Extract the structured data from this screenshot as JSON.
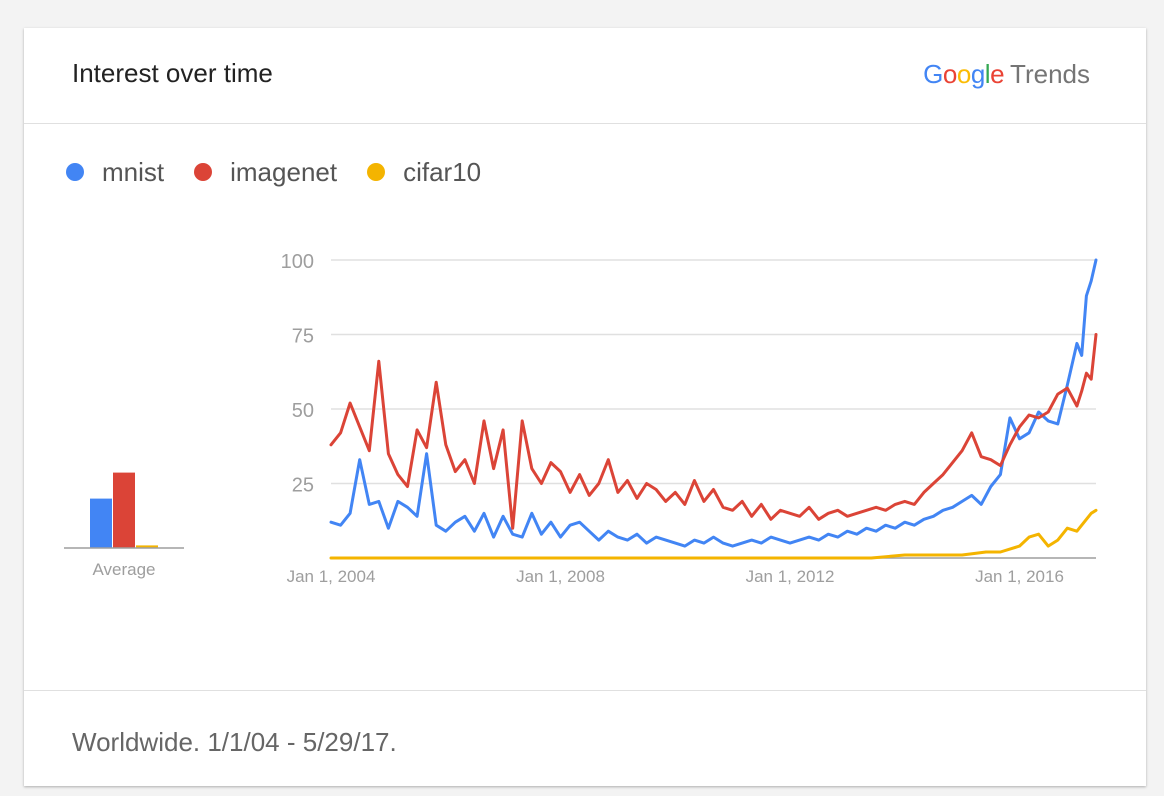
{
  "header": {
    "title": "Interest over time",
    "brand": {
      "letters": [
        {
          "char": "G",
          "color": "#4285F4"
        },
        {
          "char": "o",
          "color": "#EA4335"
        },
        {
          "char": "o",
          "color": "#FBBC05"
        },
        {
          "char": "g",
          "color": "#4285F4"
        },
        {
          "char": "l",
          "color": "#34A853"
        },
        {
          "char": "e",
          "color": "#EA4335"
        }
      ],
      "product": "Trends"
    }
  },
  "legend": [
    {
      "name": "mnist",
      "color": "#4285F4"
    },
    {
      "name": "imagenet",
      "color": "#DB4437"
    },
    {
      "name": "cifar10",
      "color": "#F4B400"
    }
  ],
  "average_label": "Average",
  "footer": {
    "text": "Worldwide. 1/1/04 - 5/29/17."
  },
  "chart_data": {
    "type": "line",
    "title": "Interest over time",
    "x_start": "2004-01",
    "x_end": "2017-05",
    "x_ticks": [
      "Jan 1, 2004",
      "Jan 1, 2008",
      "Jan 1, 2012",
      "Jan 1, 2016"
    ],
    "y_ticks": [
      25,
      50,
      75,
      100
    ],
    "ylim": [
      0,
      100
    ],
    "grid": true,
    "legend_position": "top-left",
    "averages": [
      {
        "name": "mnist",
        "value": 19
      },
      {
        "name": "imagenet",
        "value": 29
      },
      {
        "name": "cifar10",
        "value": 1
      }
    ],
    "series": [
      {
        "name": "mnist",
        "color": "#4285F4",
        "points": [
          [
            "2004-01",
            12
          ],
          [
            "2004-03",
            11
          ],
          [
            "2004-05",
            15
          ],
          [
            "2004-07",
            33
          ],
          [
            "2004-09",
            18
          ],
          [
            "2004-11",
            19
          ],
          [
            "2005-01",
            10
          ],
          [
            "2005-03",
            19
          ],
          [
            "2005-05",
            17
          ],
          [
            "2005-07",
            14
          ],
          [
            "2005-09",
            35
          ],
          [
            "2005-11",
            11
          ],
          [
            "2006-01",
            9
          ],
          [
            "2006-03",
            12
          ],
          [
            "2006-05",
            14
          ],
          [
            "2006-07",
            9
          ],
          [
            "2006-09",
            15
          ],
          [
            "2006-11",
            7
          ],
          [
            "2007-01",
            14
          ],
          [
            "2007-03",
            8
          ],
          [
            "2007-05",
            7
          ],
          [
            "2007-07",
            15
          ],
          [
            "2007-09",
            8
          ],
          [
            "2007-11",
            12
          ],
          [
            "2008-01",
            7
          ],
          [
            "2008-03",
            11
          ],
          [
            "2008-05",
            12
          ],
          [
            "2008-07",
            9
          ],
          [
            "2008-09",
            6
          ],
          [
            "2008-11",
            9
          ],
          [
            "2009-01",
            7
          ],
          [
            "2009-03",
            6
          ],
          [
            "2009-05",
            8
          ],
          [
            "2009-07",
            5
          ],
          [
            "2009-09",
            7
          ],
          [
            "2009-11",
            6
          ],
          [
            "2010-01",
            5
          ],
          [
            "2010-03",
            4
          ],
          [
            "2010-05",
            6
          ],
          [
            "2010-07",
            5
          ],
          [
            "2010-09",
            7
          ],
          [
            "2010-11",
            5
          ],
          [
            "2011-01",
            4
          ],
          [
            "2011-03",
            5
          ],
          [
            "2011-05",
            6
          ],
          [
            "2011-07",
            5
          ],
          [
            "2011-09",
            7
          ],
          [
            "2011-11",
            6
          ],
          [
            "2012-01",
            5
          ],
          [
            "2012-03",
            6
          ],
          [
            "2012-05",
            7
          ],
          [
            "2012-07",
            6
          ],
          [
            "2012-09",
            8
          ],
          [
            "2012-11",
            7
          ],
          [
            "2013-01",
            9
          ],
          [
            "2013-03",
            8
          ],
          [
            "2013-05",
            10
          ],
          [
            "2013-07",
            9
          ],
          [
            "2013-09",
            11
          ],
          [
            "2013-11",
            10
          ],
          [
            "2014-01",
            12
          ],
          [
            "2014-03",
            11
          ],
          [
            "2014-05",
            13
          ],
          [
            "2014-07",
            14
          ],
          [
            "2014-09",
            16
          ],
          [
            "2014-11",
            17
          ],
          [
            "2015-01",
            19
          ],
          [
            "2015-03",
            21
          ],
          [
            "2015-05",
            18
          ],
          [
            "2015-07",
            24
          ],
          [
            "2015-09",
            28
          ],
          [
            "2015-11",
            47
          ],
          [
            "2016-01",
            40
          ],
          [
            "2016-03",
            42
          ],
          [
            "2016-05",
            49
          ],
          [
            "2016-07",
            46
          ],
          [
            "2016-09",
            45
          ],
          [
            "2016-11",
            58
          ],
          [
            "2017-01",
            72
          ],
          [
            "2017-02",
            68
          ],
          [
            "2017-03",
            88
          ],
          [
            "2017-04",
            93
          ],
          [
            "2017-05",
            100
          ]
        ]
      },
      {
        "name": "imagenet",
        "color": "#DB4437",
        "points": [
          [
            "2004-01",
            38
          ],
          [
            "2004-03",
            42
          ],
          [
            "2004-05",
            52
          ],
          [
            "2004-07",
            44
          ],
          [
            "2004-09",
            36
          ],
          [
            "2004-11",
            66
          ],
          [
            "2005-01",
            35
          ],
          [
            "2005-03",
            28
          ],
          [
            "2005-05",
            24
          ],
          [
            "2005-07",
            43
          ],
          [
            "2005-09",
            37
          ],
          [
            "2005-11",
            59
          ],
          [
            "2006-01",
            38
          ],
          [
            "2006-03",
            29
          ],
          [
            "2006-05",
            33
          ],
          [
            "2006-07",
            25
          ],
          [
            "2006-09",
            46
          ],
          [
            "2006-11",
            30
          ],
          [
            "2007-01",
            43
          ],
          [
            "2007-03",
            10
          ],
          [
            "2007-05",
            46
          ],
          [
            "2007-07",
            30
          ],
          [
            "2007-09",
            25
          ],
          [
            "2007-11",
            32
          ],
          [
            "2008-01",
            29
          ],
          [
            "2008-03",
            22
          ],
          [
            "2008-05",
            28
          ],
          [
            "2008-07",
            21
          ],
          [
            "2008-09",
            25
          ],
          [
            "2008-11",
            33
          ],
          [
            "2009-01",
            22
          ],
          [
            "2009-03",
            26
          ],
          [
            "2009-05",
            20
          ],
          [
            "2009-07",
            25
          ],
          [
            "2009-09",
            23
          ],
          [
            "2009-11",
            19
          ],
          [
            "2010-01",
            22
          ],
          [
            "2010-03",
            18
          ],
          [
            "2010-05",
            26
          ],
          [
            "2010-07",
            19
          ],
          [
            "2010-09",
            23
          ],
          [
            "2010-11",
            17
          ],
          [
            "2011-01",
            16
          ],
          [
            "2011-03",
            19
          ],
          [
            "2011-05",
            14
          ],
          [
            "2011-07",
            18
          ],
          [
            "2011-09",
            13
          ],
          [
            "2011-11",
            16
          ],
          [
            "2012-01",
            15
          ],
          [
            "2012-03",
            14
          ],
          [
            "2012-05",
            17
          ],
          [
            "2012-07",
            13
          ],
          [
            "2012-09",
            15
          ],
          [
            "2012-11",
            16
          ],
          [
            "2013-01",
            14
          ],
          [
            "2013-03",
            15
          ],
          [
            "2013-05",
            16
          ],
          [
            "2013-07",
            17
          ],
          [
            "2013-09",
            16
          ],
          [
            "2013-11",
            18
          ],
          [
            "2014-01",
            19
          ],
          [
            "2014-03",
            18
          ],
          [
            "2014-05",
            22
          ],
          [
            "2014-07",
            25
          ],
          [
            "2014-09",
            28
          ],
          [
            "2014-11",
            32
          ],
          [
            "2015-01",
            36
          ],
          [
            "2015-03",
            42
          ],
          [
            "2015-05",
            34
          ],
          [
            "2015-07",
            33
          ],
          [
            "2015-09",
            31
          ],
          [
            "2015-11",
            38
          ],
          [
            "2016-01",
            44
          ],
          [
            "2016-03",
            48
          ],
          [
            "2016-05",
            47
          ],
          [
            "2016-07",
            49
          ],
          [
            "2016-09",
            55
          ],
          [
            "2016-11",
            57
          ],
          [
            "2017-01",
            51
          ],
          [
            "2017-02",
            56
          ],
          [
            "2017-03",
            62
          ],
          [
            "2017-04",
            60
          ],
          [
            "2017-05",
            75
          ]
        ]
      },
      {
        "name": "cifar10",
        "color": "#F4B400",
        "points": [
          [
            "2004-01",
            0
          ],
          [
            "2006-01",
            0
          ],
          [
            "2008-01",
            0
          ],
          [
            "2010-01",
            0
          ],
          [
            "2012-01",
            0
          ],
          [
            "2013-06",
            0
          ],
          [
            "2014-01",
            1
          ],
          [
            "2014-06",
            1
          ],
          [
            "2015-01",
            1
          ],
          [
            "2015-06",
            2
          ],
          [
            "2015-09",
            2
          ],
          [
            "2016-01",
            4
          ],
          [
            "2016-03",
            7
          ],
          [
            "2016-05",
            8
          ],
          [
            "2016-07",
            4
          ],
          [
            "2016-09",
            6
          ],
          [
            "2016-11",
            10
          ],
          [
            "2017-01",
            9
          ],
          [
            "2017-03",
            13
          ],
          [
            "2017-04",
            15
          ],
          [
            "2017-05",
            16
          ]
        ]
      }
    ]
  }
}
